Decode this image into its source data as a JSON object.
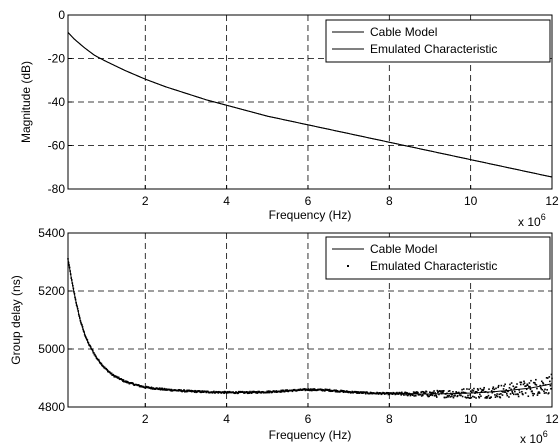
{
  "chart_data": [
    {
      "type": "line",
      "xlabel": "Frequency (Hz)",
      "ylabel": "Magnitude (dB)",
      "x_multiplier_base": "x 10",
      "x_multiplier_exp": "6",
      "xlim": [
        0.1,
        12
      ],
      "ylim": [
        -80,
        0
      ],
      "xticks": [
        2,
        4,
        6,
        8,
        10,
        12
      ],
      "yticks": [
        0,
        -20,
        -40,
        -60,
        -80
      ],
      "grid": true,
      "legend_position": "top-right",
      "series": [
        {
          "name": "Cable Model",
          "style": "line",
          "x": [
            0.1,
            0.25,
            0.5,
            0.75,
            1,
            1.5,
            2,
            2.5,
            3,
            3.5,
            4,
            4.5,
            5,
            5.5,
            6,
            6.5,
            7,
            7.5,
            8,
            8.5,
            9,
            9.5,
            10,
            10.5,
            11,
            11.5,
            12
          ],
          "y": [
            -8,
            -11,
            -15,
            -18.5,
            -21,
            -25.5,
            -29.5,
            -33,
            -36,
            -39,
            -41.5,
            -44,
            -46.5,
            -48.5,
            -50.5,
            -52.5,
            -54.5,
            -56.5,
            -58.5,
            -60.5,
            -62.5,
            -64.5,
            -66.5,
            -68.5,
            -70.5,
            -72.5,
            -74.5
          ]
        },
        {
          "name": "Emulated Characteristic",
          "style": "line",
          "x": [
            0.1,
            0.25,
            0.5,
            0.75,
            1,
            1.5,
            2,
            2.5,
            3,
            3.5,
            4,
            4.5,
            5,
            5.5,
            6,
            6.5,
            7,
            7.5,
            8,
            8.5,
            9,
            9.5,
            10,
            10.5,
            11,
            11.5,
            12
          ],
          "y": [
            -8,
            -11,
            -15,
            -18.5,
            -21,
            -25.5,
            -29.5,
            -33,
            -36,
            -39,
            -41.5,
            -44,
            -46.5,
            -48.5,
            -50.5,
            -52.5,
            -54.5,
            -56.5,
            -58.5,
            -60.5,
            -62.5,
            -64.5,
            -66.5,
            -68.5,
            -70.5,
            -72.5,
            -74.5
          ]
        }
      ]
    },
    {
      "type": "scatter",
      "xlabel": "Frequency (Hz)",
      "ylabel": "Group delay (ns)",
      "x_multiplier_base": "x 10",
      "x_multiplier_exp": "6",
      "xlim": [
        0.1,
        12
      ],
      "ylim": [
        4800,
        5400
      ],
      "xticks": [
        2,
        4,
        6,
        8,
        10,
        12
      ],
      "yticks": [
        5400,
        5200,
        5000,
        4800
      ],
      "grid": true,
      "legend_position": "top-right",
      "series": [
        {
          "name": "Cable Model",
          "style": "line",
          "x": [
            0.1,
            0.2,
            0.3,
            0.4,
            0.5,
            0.6,
            0.8,
            1.0,
            1.2,
            1.5,
            1.8,
            2.0,
            2.5,
            3.0,
            3.5,
            4.0,
            4.5,
            5.0,
            5.5,
            6.0,
            6.5,
            7.0,
            7.5,
            8.0,
            8.5,
            9.0,
            9.5,
            10.0,
            10.5,
            11.0,
            11.5,
            12.0
          ],
          "y": [
            5310,
            5230,
            5160,
            5100,
            5055,
            5020,
            4970,
            4935,
            4910,
            4888,
            4875,
            4868,
            4860,
            4855,
            4852,
            4850,
            4850,
            4852,
            4856,
            4860,
            4858,
            4852,
            4848,
            4846,
            4845,
            4845,
            4846,
            4848,
            4852,
            4858,
            4866,
            4880
          ]
        },
        {
          "name": "Emulated Characteristic",
          "style": "dots",
          "x": [
            0.1,
            0.2,
            0.3,
            0.4,
            0.5,
            0.6,
            0.8,
            1.0,
            1.2,
            1.5,
            1.8,
            2.0,
            2.5,
            3.0,
            3.5,
            4.0,
            4.5,
            5.0,
            5.5,
            6.0,
            6.5,
            7.0,
            7.5,
            8.0,
            8.5,
            9.0,
            9.5,
            10.0,
            10.5,
            11.0,
            11.5,
            12.0
          ],
          "y": [
            5310,
            5230,
            5160,
            5100,
            5055,
            5020,
            4970,
            4935,
            4910,
            4888,
            4875,
            4868,
            4860,
            4855,
            4852,
            4850,
            4850,
            4852,
            4856,
            4860,
            4858,
            4852,
            4848,
            4846,
            4845,
            4845,
            4846,
            4848,
            4852,
            4858,
            4866,
            4880
          ],
          "scatter_band": [
            {
              "from_x": 0.1,
              "to_x": 8,
              "spread": 6
            },
            {
              "from_x": 8,
              "to_x": 12,
              "spread": 60
            }
          ]
        }
      ]
    }
  ]
}
